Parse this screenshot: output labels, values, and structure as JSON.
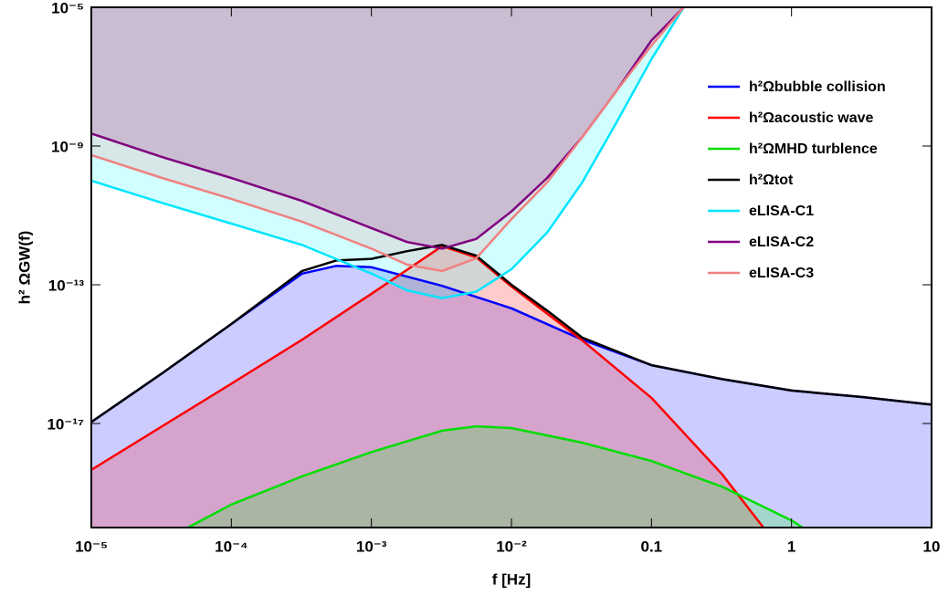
{
  "chart_data": {
    "type": "line",
    "xlabel": "f [Hz]",
    "ylabel": "h² ΩGW(f)",
    "xscale": "log",
    "yscale": "log",
    "xlim": [
      1e-05,
      10
    ],
    "ylim": [
      1e-20,
      1e-05
    ],
    "xticks": [
      {
        "value": 1e-05,
        "label": "10⁻⁵"
      },
      {
        "value": 0.0001,
        "label": "10⁻⁴"
      },
      {
        "value": 0.001,
        "label": "10⁻³"
      },
      {
        "value": 0.01,
        "label": "10⁻²"
      },
      0.1,
      1,
      10
    ],
    "yticks": [
      {
        "value": 1e-17,
        "label": "10⁻¹⁷"
      },
      {
        "value": 1e-13,
        "label": "10⁻¹³"
      },
      {
        "value": 1e-09,
        "label": "10⁻⁹"
      },
      {
        "value": 1e-05,
        "label": "10⁻⁵"
      }
    ],
    "legend": "upper right",
    "series": [
      {
        "name": "h²Ωbubble collision",
        "color": "#0000ff",
        "fill": "below",
        "fill_color": "rgba(0,0,255,0.2)",
        "x": [
          1e-05,
          3.2e-05,
          0.0001,
          0.00032,
          0.00056,
          0.001,
          0.0032,
          0.01,
          0.032,
          0.1,
          0.32,
          1,
          3.2,
          10
        ],
        "values": [
          1.1e-17,
          2.8e-16,
          7.4e-15,
          2.1e-13,
          3.5e-13,
          3.2e-13,
          9.3e-14,
          2.1e-14,
          2.6e-15,
          4.8e-16,
          1.9e-16,
          8.9e-17,
          5.8e-17,
          3.5e-17
        ]
      },
      {
        "name": "h²Ωacoustic wave",
        "color": "#ff0000",
        "fill": "below",
        "fill_color": "rgba(255,0,0,0.2)",
        "x": [
          1e-05,
          3.2e-05,
          0.0001,
          0.00032,
          0.001,
          0.0032,
          0.0056,
          0.01,
          0.032,
          0.1,
          0.32,
          0.63
        ],
        "values": [
          4.6e-19,
          8.3e-18,
          1.4e-16,
          2.6e-15,
          5.5e-14,
          1.3e-12,
          6.2e-13,
          8.9e-14,
          2.5e-15,
          5.5e-17,
          3.4e-19,
          1e-20
        ]
      },
      {
        "name": "h²ΩMHD turblence",
        "color": "#00dd00",
        "fill": "below",
        "fill_color": "rgba(0,255,0,0.2)",
        "x": [
          4.9e-05,
          0.0001,
          0.00032,
          0.001,
          0.0032,
          0.0056,
          0.01,
          0.032,
          0.1,
          0.32,
          1,
          1.2
        ],
        "values": [
          1e-20,
          4.6e-20,
          3e-19,
          1.5e-18,
          6.2e-18,
          8.3e-18,
          7.4e-18,
          2.8e-18,
          8.3e-19,
          1.5e-19,
          1.6e-20,
          1e-20
        ]
      },
      {
        "name": "h²Ωtot",
        "color": "#000000",
        "x": [
          1e-05,
          3.2e-05,
          0.0001,
          0.00032,
          0.00056,
          0.001,
          0.0018,
          0.0032,
          0.0056,
          0.01,
          0.018,
          0.032,
          0.1,
          0.32,
          1,
          3.2,
          10
        ],
        "values": [
          1.1e-17,
          2.8e-16,
          7.4e-15,
          2.5e-13,
          5e-13,
          5.6e-13,
          9.3e-13,
          1.4e-12,
          6.9e-13,
          1e-13,
          1.8e-14,
          3e-15,
          4.8e-16,
          1.9e-16,
          8.9e-17,
          5.8e-17,
          3.5e-17
        ]
      },
      {
        "name": "eLISA-C1",
        "color": "#00e5ff",
        "fill": "above",
        "fill_color": "rgba(0,255,255,0.18)",
        "x": [
          1e-05,
          3.2e-05,
          0.0001,
          0.00032,
          0.001,
          0.0018,
          0.0032,
          0.0056,
          0.01,
          0.018,
          0.032,
          0.056,
          0.1,
          0.17
        ],
        "values": [
          1e-10,
          2.3e-11,
          5.8e-12,
          1.4e-12,
          2.1e-13,
          6.9e-14,
          4.1e-14,
          6.3e-14,
          2.8e-13,
          3.2e-12,
          8.9e-11,
          4.6e-09,
          3.2e-07,
          1e-05
        ]
      },
      {
        "name": "eLISA-C2",
        "color": "#800080",
        "fill": "above",
        "fill_color": "rgba(128,0,128,0.2)",
        "x": [
          1e-05,
          3.2e-05,
          0.0001,
          0.00032,
          0.001,
          0.0018,
          0.0032,
          0.0056,
          0.01,
          0.018,
          0.032,
          0.056,
          0.1,
          0.17
        ],
        "values": [
          2.3e-09,
          4.8e-10,
          1.2e-10,
          2.6e-11,
          4.3e-12,
          1.7e-12,
          1.1e-12,
          2.1e-12,
          1.3e-11,
          1.2e-10,
          1.8e-09,
          3.8e-08,
          1.1e-06,
          1e-05
        ]
      },
      {
        "name": "eLISA-C3",
        "color": "#f08080",
        "fill": "above",
        "fill_color": "rgba(240,128,128,0.2)",
        "x": [
          1e-05,
          3.2e-05,
          0.0001,
          0.00032,
          0.001,
          0.0018,
          0.0032,
          0.0056,
          0.01,
          0.018,
          0.032,
          0.056,
          0.1,
          0.17
        ],
        "values": [
          5.5e-10,
          1.2e-10,
          3e-11,
          6.6e-12,
          1.1e-12,
          3.8e-13,
          2.5e-13,
          5.8e-13,
          7.8e-12,
          8.9e-11,
          1.8e-09,
          3.8e-08,
          7.9e-07,
          1e-05
        ]
      }
    ]
  }
}
